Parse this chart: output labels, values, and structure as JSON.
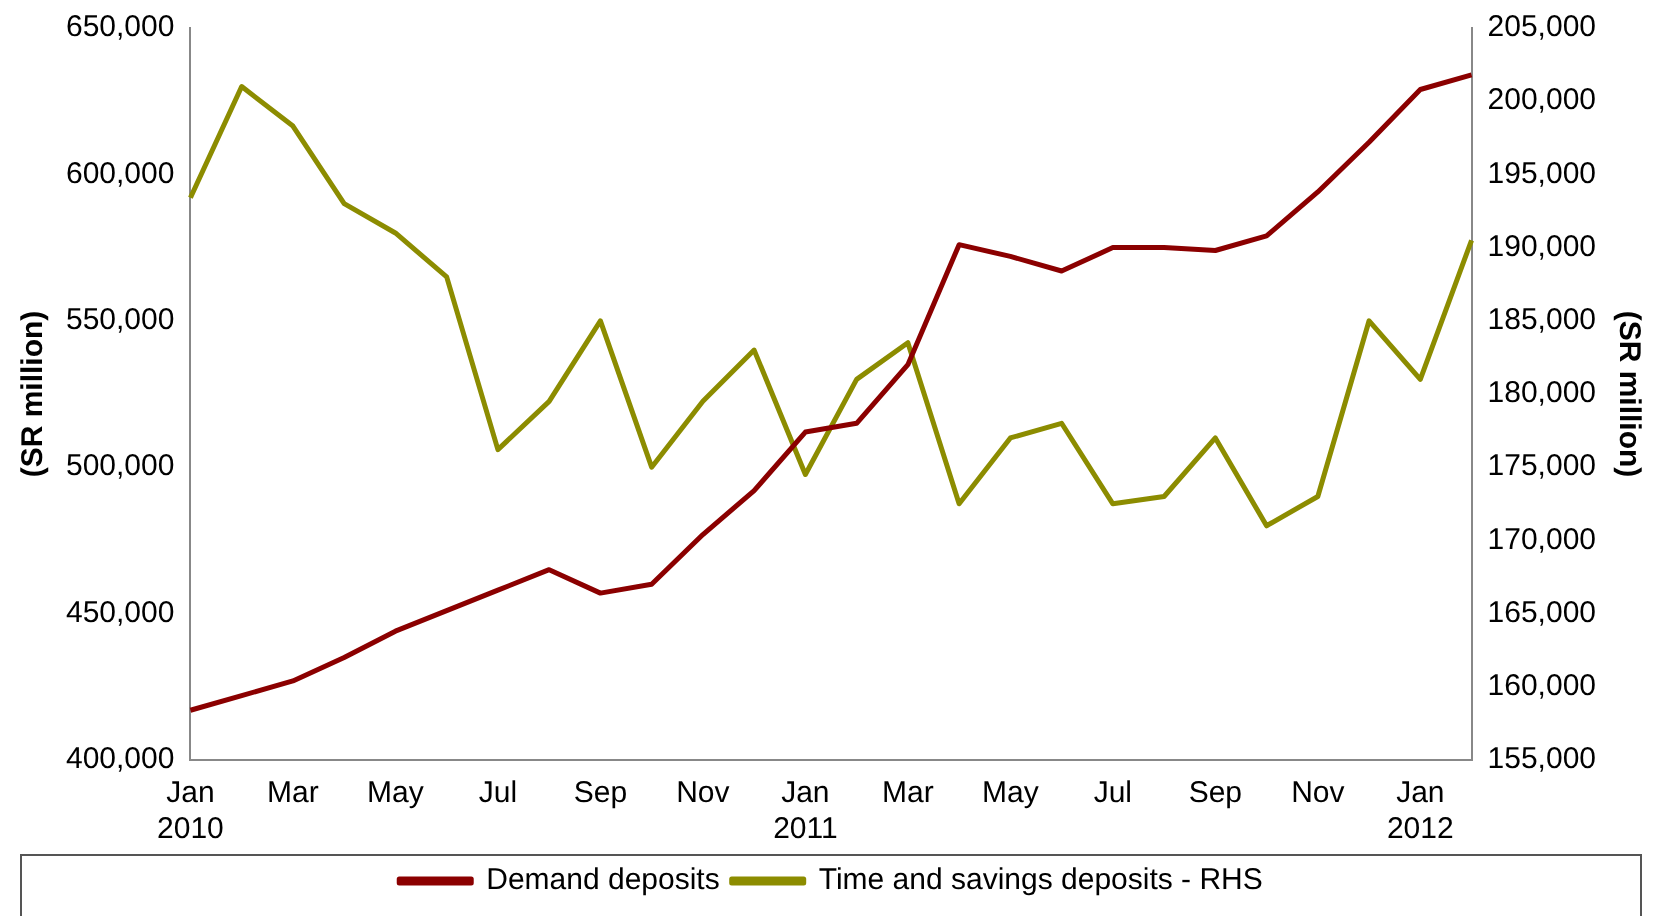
{
  "chart_data": {
    "type": "line",
    "categories": [
      "Jan\n2010",
      null,
      "Mar",
      null,
      "May",
      null,
      "Jul",
      null,
      "Sep",
      null,
      "Nov",
      null,
      "Jan\n2011",
      null,
      "Mar",
      null,
      "May",
      null,
      "Jul",
      null,
      "Sep",
      null,
      "Nov",
      null,
      "Jan\n2012",
      null
    ],
    "series": [
      {
        "name": "Demand deposits",
        "color": "#8b0000",
        "values": [
          417000,
          422000,
          427000,
          435000,
          444000,
          451000,
          458000,
          465000,
          457000,
          460000,
          477000,
          492000,
          512000,
          515000,
          535000,
          576000,
          572000,
          567000,
          575000,
          575000,
          574000,
          579000,
          594000,
          611000,
          629000,
          634000
        ]
      },
      {
        "name": "Time and savings deposits - RHS",
        "color": "#8c8c00",
        "axis": "y2",
        "values": [
          193400,
          201000,
          198300,
          193000,
          191000,
          188000,
          176200,
          179500,
          185000,
          175000,
          179500,
          183000,
          174500,
          181000,
          183500,
          172500,
          177000,
          178000,
          172500,
          173000,
          177000,
          171000,
          173000,
          185000,
          181000,
          190500
        ]
      }
    ],
    "ylabel": "(SR million)",
    "y2label": "(SR million)",
    "ylim": [
      400000,
      650000
    ],
    "yticks": [
      {
        "value": 400000,
        "label": "400,000"
      },
      {
        "value": 450000,
        "label": "450,000"
      },
      {
        "value": 500000,
        "label": "500,000"
      },
      {
        "value": 550000,
        "label": "550,000"
      },
      {
        "value": 600000,
        "label": "600,000"
      },
      {
        "value": 650000,
        "label": "650,000"
      }
    ],
    "y2lim": [
      155000,
      205000
    ],
    "y2ticks": [
      {
        "value": 155000,
        "label": "155,000"
      },
      {
        "value": 160000,
        "label": "160,000"
      },
      {
        "value": 165000,
        "label": "165,000"
      },
      {
        "value": 170000,
        "label": "170,000"
      },
      {
        "value": 175000,
        "label": "175,000"
      },
      {
        "value": 180000,
        "label": "180,000"
      },
      {
        "value": 185000,
        "label": "185,000"
      },
      {
        "value": 190000,
        "label": "190,000"
      },
      {
        "value": 195000,
        "label": "195,000"
      },
      {
        "value": 200000,
        "label": "200,000"
      },
      {
        "value": 205000,
        "label": "205,000"
      }
    ],
    "grid": false,
    "legend": "bottom",
    "marker": "none",
    "line_style": "solid"
  }
}
